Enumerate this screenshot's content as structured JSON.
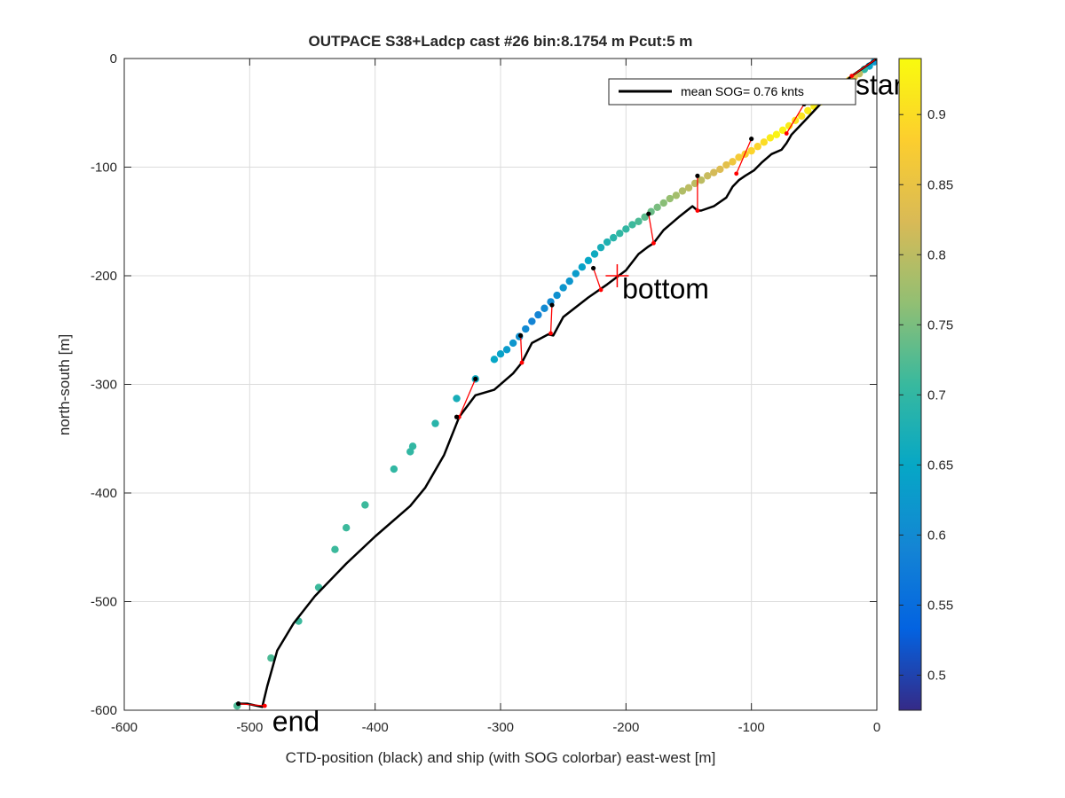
{
  "chart_data": {
    "type": "scatter",
    "title": "OUTPACE S38+Ladcp cast #26 bin:8.1754 m  Pcut:5 m",
    "xlabel": "CTD-position (black) and ship (with SOG colorbar) east-west [m]",
    "ylabel": "north-south [m]",
    "xlim": [
      -600,
      0
    ],
    "ylim": [
      -600,
      0
    ],
    "xticks": [
      "-600",
      "-500",
      "-400",
      "-300",
      "-200",
      "-100",
      "0"
    ],
    "yticks": [
      "-600",
      "-500",
      "-400",
      "-300",
      "-200",
      "-100",
      "0"
    ],
    "grid": true,
    "legend": {
      "label": "mean SOG=  0.76 knts",
      "placement": "top-right"
    },
    "colorbar": {
      "range": [
        0.475,
        0.94
      ],
      "ticks": [
        "0.5",
        "0.55",
        "0.6",
        "0.65",
        "0.7",
        "0.75",
        "0.8",
        "0.85",
        "0.9"
      ],
      "colormap": [
        "#352a87",
        "#0363e1",
        "#1485d4",
        "#06a7c6",
        "#38b99e",
        "#92bf73",
        "#d9ba56",
        "#fcce2e",
        "#f9fb0e"
      ]
    },
    "annotations": [
      {
        "text": "start",
        "x": -17,
        "y": -24
      },
      {
        "text": "bottom",
        "x": -203,
        "y": -212
      },
      {
        "text": "end",
        "x": -482,
        "y": -610
      }
    ],
    "bottom_marker": {
      "x": -207,
      "y": -200,
      "color": "#ff0000"
    },
    "ctd_track": {
      "name": "CTD-position",
      "color": "#000000",
      "x": [
        0,
        -10,
        -20,
        -30,
        -45,
        -58,
        -68,
        -72,
        -76,
        -84,
        -92,
        -98,
        -105,
        -110,
        -115,
        -120,
        -130,
        -140,
        -143,
        -147,
        -158,
        -170,
        -178,
        -182,
        -190,
        -200,
        -215,
        -230,
        -250,
        -258,
        -262,
        -275,
        -283,
        -290,
        -305,
        -320,
        -333,
        -345,
        -355,
        -360,
        -372,
        -400,
        -423,
        -448,
        -465,
        -478,
        -486,
        -490,
        -502,
        -508
      ],
      "y": [
        0,
        -8,
        -16,
        -26,
        -42,
        -58,
        -70,
        -78,
        -84,
        -88,
        -96,
        -103,
        -108,
        -112,
        -118,
        -128,
        -136,
        -140,
        -140,
        -136,
        -146,
        -158,
        -170,
        -173,
        -180,
        -195,
        -208,
        -220,
        -238,
        -255,
        -254,
        -262,
        -280,
        -290,
        -305,
        -310,
        -330,
        -365,
        -385,
        -395,
        -412,
        -440,
        -465,
        -495,
        -520,
        -545,
        -578,
        -597,
        -594,
        -594
      ]
    },
    "ship_track": {
      "name": "ship (SOG)",
      "x": [
        -2,
        -6,
        -10,
        -14,
        -18,
        -22,
        -26,
        -30,
        -35,
        -40,
        -45,
        -50,
        -55,
        -60,
        -65,
        -70,
        -75,
        -80,
        -85,
        -90,
        -95,
        -100,
        -105,
        -110,
        -115,
        -120,
        -125,
        -130,
        -135,
        -140,
        -145,
        -150,
        -155,
        -160,
        -165,
        -170,
        -175,
        -180,
        -185,
        -190,
        -195,
        -200,
        -205,
        -210,
        -215,
        -220,
        -225,
        -230,
        -235,
        -240,
        -245,
        -250,
        -255,
        -260,
        -265,
        -270,
        -275,
        -280,
        -285,
        -290,
        -295,
        -300,
        -305,
        -320,
        -335,
        -352,
        -370,
        -372,
        -385,
        -408,
        -423,
        -432,
        -445,
        -461,
        -483,
        -510
      ],
      "y": [
        -3,
        -7,
        -10,
        -14,
        -17,
        -20,
        -23,
        -27,
        -31,
        -36,
        -40,
        -44,
        -48,
        -53,
        -57,
        -62,
        -66,
        -70,
        -73,
        -77,
        -81,
        -85,
        -88,
        -91,
        -95,
        -98,
        -102,
        -105,
        -108,
        -112,
        -115,
        -119,
        -122,
        -126,
        -129,
        -133,
        -137,
        -141,
        -146,
        -150,
        -153,
        -157,
        -161,
        -165,
        -169,
        -174,
        -180,
        -186,
        -192,
        -198,
        -205,
        -211,
        -218,
        -224,
        -230,
        -236,
        -242,
        -249,
        -256,
        -262,
        -268,
        -272,
        -277,
        -295,
        -313,
        -336,
        -357,
        -362,
        -378,
        -411,
        -432,
        -452,
        -487,
        -518,
        -552,
        -596
      ],
      "sog": [
        0.62,
        0.64,
        0.7,
        0.8,
        0.84,
        0.88,
        0.9,
        0.92,
        0.93,
        0.93,
        0.93,
        0.92,
        0.92,
        0.91,
        0.91,
        0.92,
        0.93,
        0.93,
        0.92,
        0.9,
        0.89,
        0.89,
        0.88,
        0.87,
        0.86,
        0.84,
        0.83,
        0.82,
        0.81,
        0.8,
        0.8,
        0.8,
        0.79,
        0.78,
        0.77,
        0.76,
        0.75,
        0.74,
        0.73,
        0.72,
        0.71,
        0.7,
        0.7,
        0.69,
        0.68,
        0.67,
        0.66,
        0.65,
        0.64,
        0.63,
        0.62,
        0.62,
        0.61,
        0.6,
        0.6,
        0.59,
        0.59,
        0.6,
        0.61,
        0.62,
        0.63,
        0.64,
        0.65,
        0.66,
        0.67,
        0.69,
        0.7,
        0.7,
        0.7,
        0.71,
        0.71,
        0.71,
        0.71,
        0.71,
        0.72,
        0.72
      ]
    },
    "pairs": {
      "color": "#ff0000",
      "ship_x": [
        0,
        -58,
        -100,
        -143,
        -182,
        -226,
        -259,
        -284,
        -320,
        -335,
        -509
      ],
      "ship_y": [
        0,
        -42,
        -74,
        -108,
        -143,
        -193,
        -227,
        -255,
        -295,
        -330,
        -594
      ],
      "ctd_x": [
        -20,
        -72,
        -112,
        -143,
        -178,
        -220,
        -260,
        -283,
        -333,
        -335,
        -488
      ],
      "ctd_y": [
        -16,
        -69,
        -106,
        -140,
        -170,
        -213,
        -253,
        -280,
        -330,
        -330,
        -596
      ]
    }
  }
}
